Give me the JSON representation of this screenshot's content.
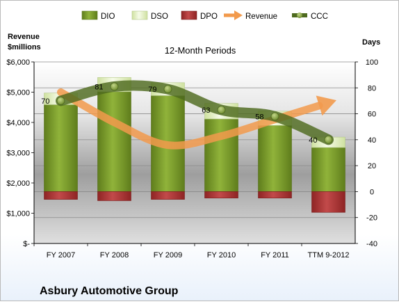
{
  "chart_data": {
    "type": "bar",
    "subtitle": "12-Month Periods",
    "company": "Asbury Automotive Group",
    "left_axis_label_line1": "Revenue",
    "left_axis_label_line2": "$millions",
    "right_axis_label": "Days",
    "categories": [
      "FY 2007",
      "FY 2008",
      "FY 2009",
      "FY 2010",
      "FY 2011",
      "TTM 9-2012"
    ],
    "left_ticks": [
      "$6,000",
      "$5,000",
      "$4,000",
      "$3,000",
      "$2,000",
      "$1,000",
      "$-"
    ],
    "right_ticks": [
      "100",
      "80",
      "60",
      "40",
      "20",
      "0",
      "-20",
      "-40"
    ],
    "left_ylim": [
      0,
      6000
    ],
    "right_ylim": [
      -40,
      100
    ],
    "legend": [
      "DIO",
      "DSO",
      "DPO",
      "Revenue",
      "CCC"
    ],
    "series": [
      {
        "name": "DIO",
        "axis": "right",
        "color": "#7c9d2b",
        "values": [
          67,
          77,
          74,
          56,
          51,
          34
        ]
      },
      {
        "name": "DSO",
        "axis": "right",
        "color": "#e6f2c6",
        "values": [
          9,
          11,
          10,
          12,
          11,
          8
        ]
      },
      {
        "name": "DPO",
        "axis": "right",
        "color": "#b53a3a",
        "values": [
          -6,
          -7,
          -6,
          -5,
          -5,
          -16
        ]
      },
      {
        "name": "Revenue",
        "axis": "left",
        "color": "#f29a4c",
        "values": [
          5000,
          4000,
          3250,
          3550,
          4100,
          4650
        ]
      },
      {
        "name": "CCC",
        "axis": "right",
        "color": "#4e6a1f",
        "values": [
          70,
          81,
          79,
          63,
          58,
          40
        ]
      }
    ],
    "ccc_labels": [
      "70",
      "81",
      "79",
      "63",
      "58",
      "40"
    ],
    "grid": true,
    "legend_position": "top"
  }
}
